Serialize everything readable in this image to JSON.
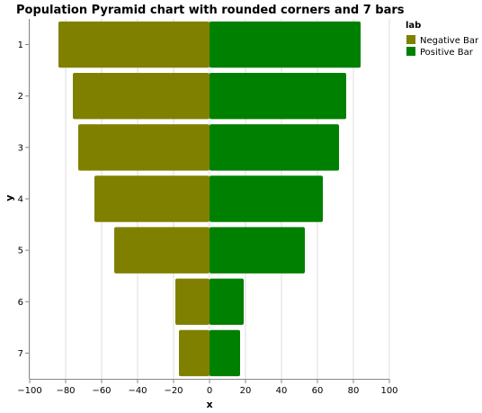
{
  "chart_data": {
    "type": "bar",
    "orientation": "horizontal",
    "title": "Population Pyramid chart with rounded corners and 7 bars",
    "xlabel": "x",
    "ylabel": "y",
    "xlim": [
      -100,
      100
    ],
    "xticks": [
      -100,
      -80,
      -60,
      -40,
      -20,
      0,
      20,
      40,
      60,
      80,
      100
    ],
    "grid": true,
    "categories": [
      "1",
      "2",
      "3",
      "4",
      "5",
      "6",
      "7"
    ],
    "legend": {
      "title": "lab",
      "placement": "top-right"
    },
    "series": [
      {
        "name": "Negative Bar",
        "color": "#808000",
        "values": [
          -84,
          -76,
          -73,
          -64,
          -53,
          -19,
          -17
        ]
      },
      {
        "name": "Positive Bar",
        "color": "#008000",
        "values": [
          84,
          76,
          72,
          63,
          53,
          19,
          17
        ]
      }
    ]
  }
}
